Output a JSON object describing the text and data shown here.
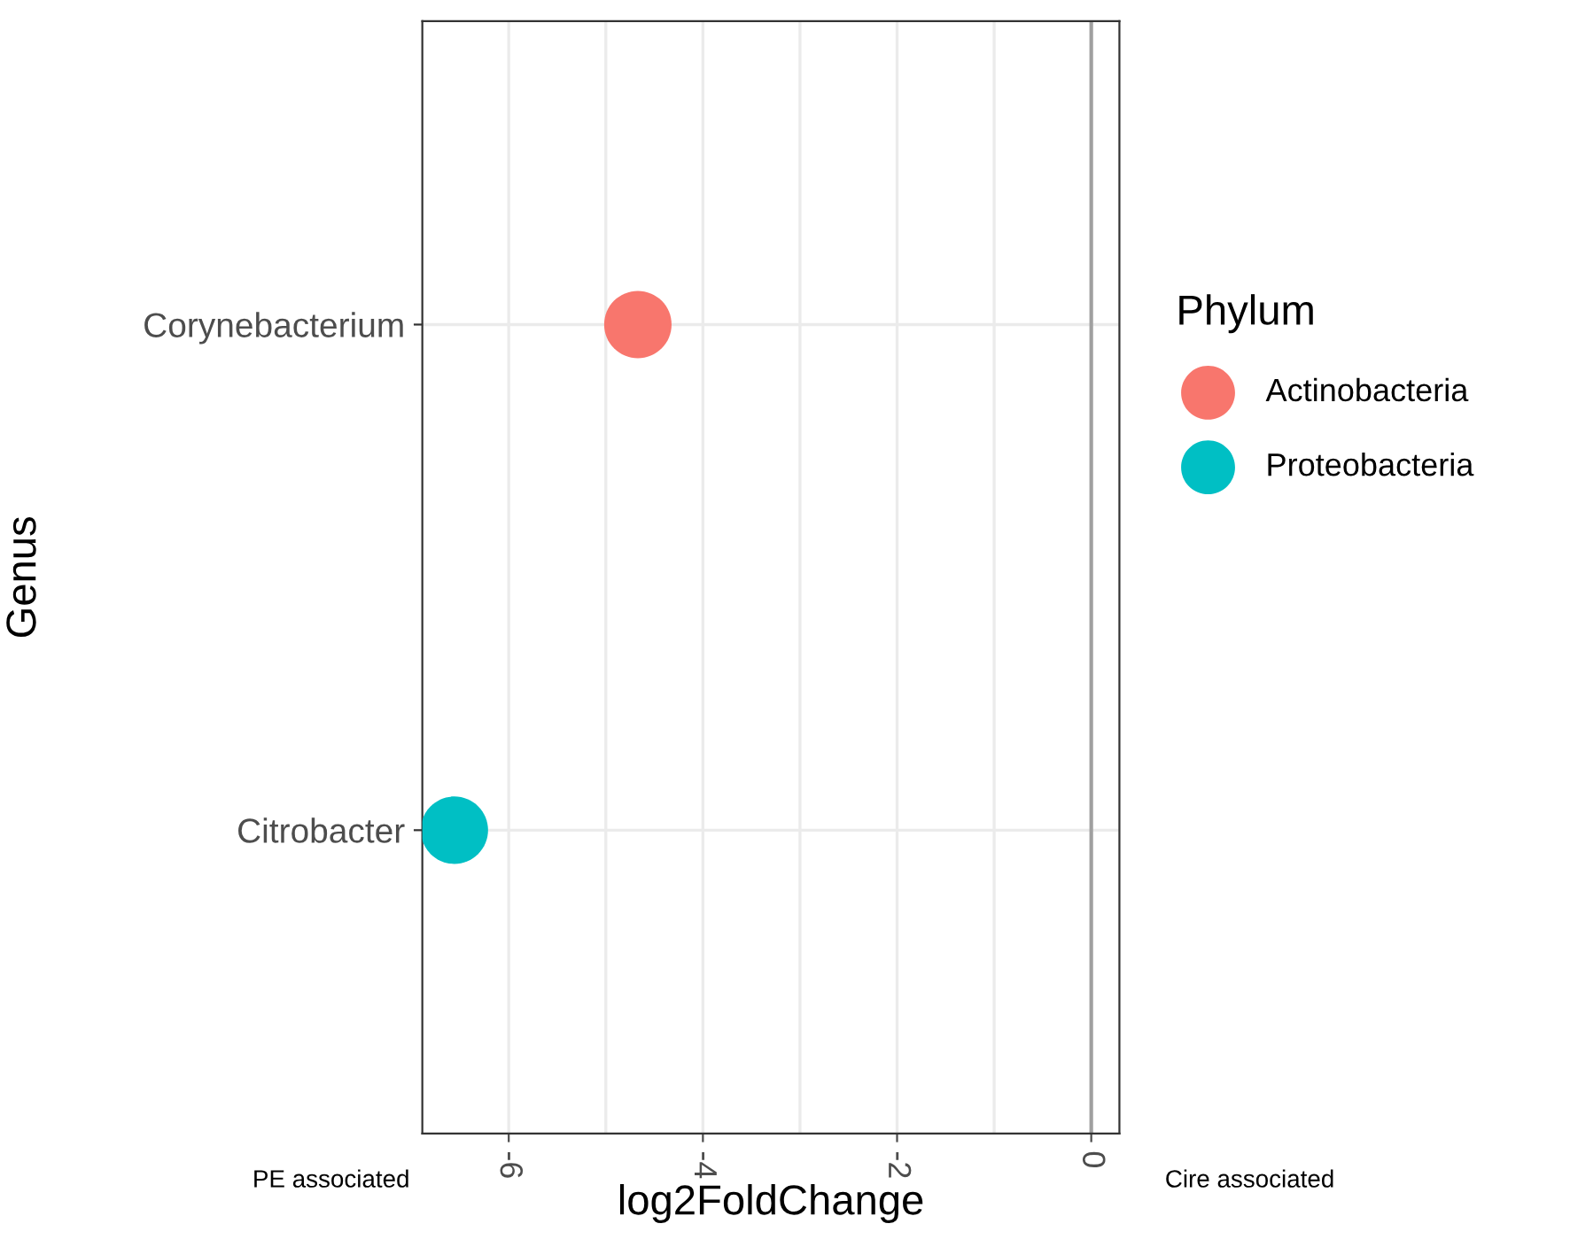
{
  "chart_data": {
    "type": "scatter",
    "orientation": "horizontal",
    "xlabel": "log2FoldChange",
    "ylabel": "Genus",
    "legend_title": "Phylum",
    "categories": [
      "Corynebacterium",
      "Citrobacter"
    ],
    "series": [
      {
        "name": "Actinobacteria",
        "color": "#f8766d",
        "values": [
          -4.67,
          null
        ]
      },
      {
        "name": "Proteobacteria",
        "color": "#00bfc4",
        "values": [
          null,
          -6.56
        ]
      }
    ],
    "xlim": [
      -6.89,
      0.29
    ],
    "xticks": [
      {
        "value": -6,
        "label": "-6"
      },
      {
        "value": -5,
        "label": null
      },
      {
        "value": -4,
        "label": "-4"
      },
      {
        "value": -3,
        "label": null
      },
      {
        "value": -2,
        "label": "-2"
      },
      {
        "value": -1,
        "label": null
      },
      {
        "value": 0,
        "label": "0"
      }
    ],
    "ref_lines": [
      {
        "axis": "x",
        "value": 0,
        "color": "#a0a0a0"
      }
    ],
    "annotations": [
      "PE associated",
      "Cire associated"
    ],
    "grid": true,
    "legend": "right",
    "marker": "circle"
  }
}
